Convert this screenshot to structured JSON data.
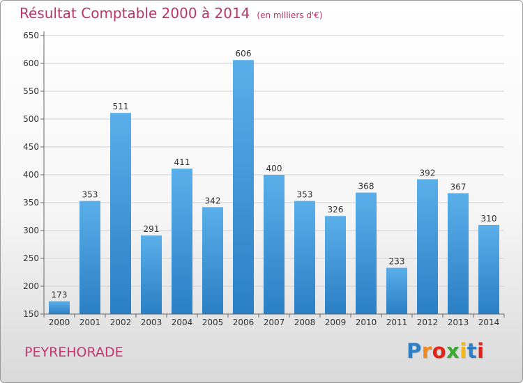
{
  "page": {
    "commune": "PEYREHORADE",
    "logo": {
      "text": "Proxiti",
      "colors": [
        "#2e7fc6",
        "#f08a1c",
        "#e2231a",
        "#3aa832",
        "#f0b71c",
        "#2e7fc6",
        "#e2231a"
      ]
    }
  },
  "colors": {
    "bar_light": "#5aaee9",
    "bar_dark": "#2b7fc4",
    "title": "#b8356a",
    "grid": "#d0d0d0",
    "axis": "#666666"
  },
  "chart_data": {
    "type": "bar",
    "title": "Résultat Comptable 2000 à 2014",
    "subtitle": "(en milliers d'€)",
    "categories": [
      "2000",
      "2001",
      "2002",
      "2003",
      "2004",
      "2005",
      "2006",
      "2007",
      "2008",
      "2009",
      "2010",
      "2011",
      "2012",
      "2013",
      "2014"
    ],
    "values": [
      173,
      353,
      511,
      291,
      411,
      342,
      606,
      400,
      353,
      326,
      368,
      233,
      392,
      367,
      310
    ],
    "ylim": [
      150,
      650
    ],
    "yticks": [
      150,
      200,
      250,
      300,
      350,
      400,
      450,
      500,
      550,
      600,
      650
    ],
    "grid": true,
    "data_labels": true
  }
}
